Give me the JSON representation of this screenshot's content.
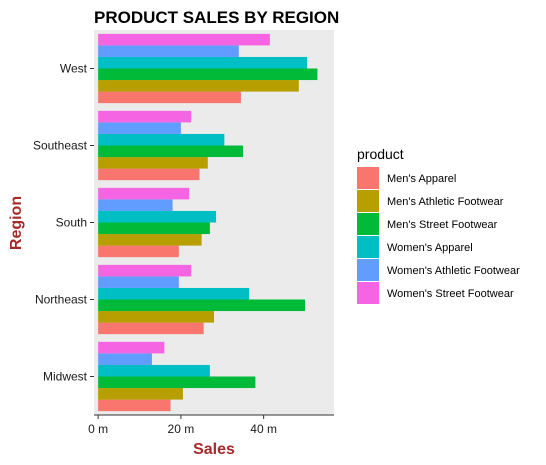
{
  "chart_data": {
    "type": "bar",
    "orientation": "horizontal",
    "title": "PRODUCT SALES BY REGION",
    "xlabel": "Sales",
    "ylabel": "Region",
    "categories": [
      "Midwest",
      "Northeast",
      "South",
      "Southeast",
      "West"
    ],
    "x_ticks": [
      "0 m",
      "20 m",
      "40 m"
    ],
    "x_tick_values": [
      0,
      20,
      40
    ],
    "xlim": [
      -1,
      57
    ],
    "grid": false,
    "panel_background": "#ebebeb",
    "legend": {
      "title": "product",
      "position": "right"
    },
    "series": [
      {
        "name": "Men's Apparel",
        "color": "#f8766d",
        "values": [
          17.5,
          25.5,
          19.5,
          24.5,
          34.5
        ]
      },
      {
        "name": "Men's Athletic Footwear",
        "color": "#b79f00",
        "values": [
          20.5,
          28,
          25,
          26.5,
          48.5
        ]
      },
      {
        "name": "Men's Street Footwear",
        "color": "#00ba38",
        "values": [
          38,
          50,
          27,
          35,
          53
        ]
      },
      {
        "name": "Women's Apparel",
        "color": "#00bfc4",
        "values": [
          27,
          36.5,
          28.5,
          30.5,
          50.5
        ]
      },
      {
        "name": "Women's Athletic Footwear",
        "color": "#619cff",
        "values": [
          13,
          19.5,
          18,
          20,
          34
        ]
      },
      {
        "name": "Women's Street Footwear",
        "color": "#f564e3",
        "values": [
          16,
          22.5,
          22,
          22.5,
          41.5
        ]
      }
    ]
  }
}
